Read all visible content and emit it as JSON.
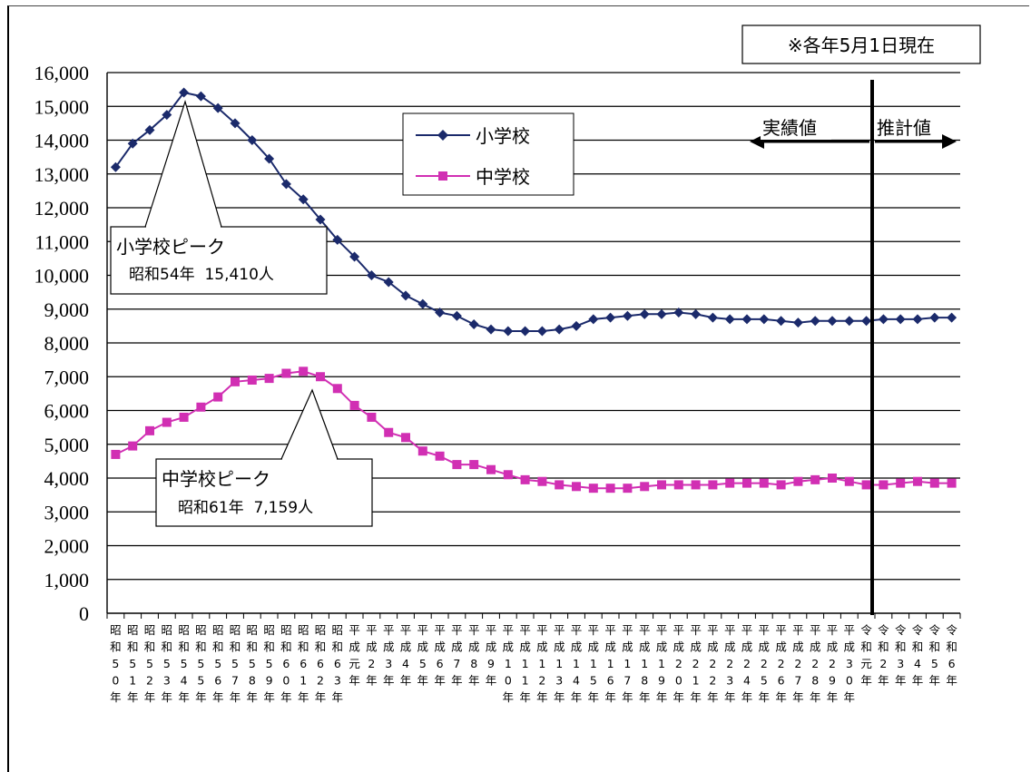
{
  "chart_data": {
    "type": "line",
    "note": "※各年5月1日現在",
    "ylim": [
      0,
      16000
    ],
    "yticks": [
      "0",
      "1,000",
      "2,000",
      "3,000",
      "4,000",
      "5,000",
      "6,000",
      "7,000",
      "8,000",
      "9,000",
      "10,000",
      "11,000",
      "12,000",
      "13,000",
      "14,000",
      "15,000",
      "16,000"
    ],
    "x_labels": [
      [
        "昭",
        "和",
        "5",
        "0",
        "年"
      ],
      [
        "昭",
        "和",
        "5",
        "1",
        "年"
      ],
      [
        "昭",
        "和",
        "5",
        "2",
        "年"
      ],
      [
        "昭",
        "和",
        "5",
        "3",
        "年"
      ],
      [
        "昭",
        "和",
        "5",
        "4",
        "年"
      ],
      [
        "昭",
        "和",
        "5",
        "5",
        "年"
      ],
      [
        "昭",
        "和",
        "5",
        "6",
        "年"
      ],
      [
        "昭",
        "和",
        "5",
        "7",
        "年"
      ],
      [
        "昭",
        "和",
        "5",
        "8",
        "年"
      ],
      [
        "昭",
        "和",
        "5",
        "9",
        "年"
      ],
      [
        "昭",
        "和",
        "6",
        "0",
        "年"
      ],
      [
        "昭",
        "和",
        "6",
        "1",
        "年"
      ],
      [
        "昭",
        "和",
        "6",
        "2",
        "年"
      ],
      [
        "昭",
        "和",
        "6",
        "3",
        "年"
      ],
      [
        "平",
        "成",
        "元",
        "年"
      ],
      [
        "平",
        "成",
        "2",
        "年"
      ],
      [
        "平",
        "成",
        "3",
        "年"
      ],
      [
        "平",
        "成",
        "4",
        "年"
      ],
      [
        "平",
        "成",
        "5",
        "年"
      ],
      [
        "平",
        "成",
        "6",
        "年"
      ],
      [
        "平",
        "成",
        "7",
        "年"
      ],
      [
        "平",
        "成",
        "8",
        "年"
      ],
      [
        "平",
        "成",
        "9",
        "年"
      ],
      [
        "平",
        "成",
        "1",
        "0",
        "年"
      ],
      [
        "平",
        "成",
        "1",
        "1",
        "年"
      ],
      [
        "平",
        "成",
        "1",
        "2",
        "年"
      ],
      [
        "平",
        "成",
        "1",
        "3",
        "年"
      ],
      [
        "平",
        "成",
        "1",
        "4",
        "年"
      ],
      [
        "平",
        "成",
        "1",
        "5",
        "年"
      ],
      [
        "平",
        "成",
        "1",
        "6",
        "年"
      ],
      [
        "平",
        "成",
        "1",
        "7",
        "年"
      ],
      [
        "平",
        "成",
        "1",
        "8",
        "年"
      ],
      [
        "平",
        "成",
        "1",
        "9",
        "年"
      ],
      [
        "平",
        "成",
        "2",
        "0",
        "年"
      ],
      [
        "平",
        "成",
        "2",
        "1",
        "年"
      ],
      [
        "平",
        "成",
        "2",
        "2",
        "年"
      ],
      [
        "平",
        "成",
        "2",
        "3",
        "年"
      ],
      [
        "平",
        "成",
        "2",
        "4",
        "年"
      ],
      [
        "平",
        "成",
        "2",
        "5",
        "年"
      ],
      [
        "平",
        "成",
        "2",
        "6",
        "年"
      ],
      [
        "平",
        "成",
        "2",
        "7",
        "年"
      ],
      [
        "平",
        "成",
        "2",
        "8",
        "年"
      ],
      [
        "平",
        "成",
        "2",
        "9",
        "年"
      ],
      [
        "平",
        "成",
        "3",
        "0",
        "年"
      ],
      [
        "令",
        "和",
        "元",
        "年"
      ],
      [
        "令",
        "和",
        "2",
        "年"
      ],
      [
        "令",
        "和",
        "3",
        "年"
      ],
      [
        "令",
        "和",
        "4",
        "年"
      ],
      [
        "令",
        "和",
        "5",
        "年"
      ],
      [
        "令",
        "和",
        "6",
        "年"
      ]
    ],
    "series": [
      {
        "name": "小学校",
        "color": "#1b2a6b",
        "marker": "diamond",
        "values": [
          13200,
          13900,
          14300,
          14750,
          15410,
          15300,
          14950,
          14500,
          14000,
          13450,
          12700,
          12250,
          11650,
          11050,
          10550,
          10000,
          9800,
          9400,
          9150,
          8900,
          8800,
          8550,
          8400,
          8350,
          8350,
          8350,
          8400,
          8500,
          8700,
          8750,
          8800,
          8850,
          8850,
          8900,
          8850,
          8750,
          8700,
          8700,
          8700,
          8650,
          8600,
          8650,
          8650,
          8650,
          8650,
          8700,
          8700,
          8700,
          8750,
          8750
        ]
      },
      {
        "name": "中学校",
        "color": "#d12fb3",
        "marker": "square",
        "values": [
          4700,
          4950,
          5400,
          5650,
          5800,
          6100,
          6400,
          6850,
          6900,
          6950,
          7100,
          7159,
          7000,
          6650,
          6150,
          5800,
          5350,
          5200,
          4800,
          4650,
          4400,
          4400,
          4250,
          4100,
          3950,
          3900,
          3800,
          3750,
          3700,
          3700,
          3700,
          3750,
          3800,
          3800,
          3800,
          3800,
          3850,
          3850,
          3850,
          3800,
          3900,
          3950,
          4000,
          3900,
          3800,
          3800,
          3850,
          3900,
          3850,
          3850
        ]
      }
    ],
    "annotations": {
      "peak_elementary_title": "小学校ピーク",
      "peak_elementary_text": "昭和54年  15,410人",
      "peak_junior_title": "中学校ピーク",
      "peak_junior_text": "昭和61年  7,159人",
      "actual_label": "実績値",
      "forecast_label": "推計値"
    },
    "divider_after_index": 43,
    "legend_position": "top-center"
  }
}
